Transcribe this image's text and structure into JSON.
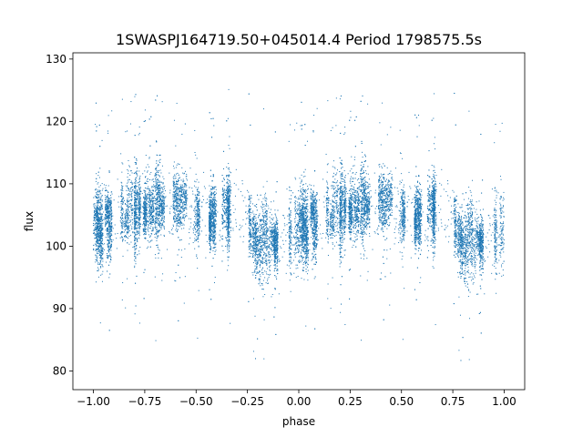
{
  "chart_data": {
    "type": "scatter",
    "title": "1SWASPJ164719.50+045014.4 Period 1798575.5s",
    "xlabel": "phase",
    "ylabel": "flux",
    "xlim": [
      -1.1,
      1.1
    ],
    "ylim": [
      77,
      131
    ],
    "xticks": [
      -1.0,
      -0.75,
      -0.5,
      -0.25,
      0.0,
      0.25,
      0.5,
      0.75,
      1.0
    ],
    "xtick_labels": [
      "−1.00",
      "−0.75",
      "−0.50",
      "−0.25",
      "0.00",
      "0.25",
      "0.50",
      "0.75",
      "1.00"
    ],
    "yticks": [
      80,
      90,
      100,
      110,
      120,
      130
    ],
    "ytick_labels": [
      "80",
      "90",
      "100",
      "110",
      "120",
      "130"
    ],
    "grid": false,
    "marker_color": "#1f77b4",
    "series": [
      {
        "phase_range": [
          -1.0,
          1.0
        ],
        "baseline_flux": 104,
        "flux_range": [
          80,
          130
        ],
        "period_repeat": 1.0,
        "profile": [
          {
            "phase": 0.0,
            "flux": 103
          },
          {
            "phase": 0.15,
            "flux": 105
          },
          {
            "phase": 0.3,
            "flux": 107
          },
          {
            "phase": 0.45,
            "flux": 106
          },
          {
            "phase": 0.6,
            "flux": 104
          },
          {
            "phase": 0.7,
            "flux": 106
          },
          {
            "phase": 0.8,
            "flux": 102
          },
          {
            "phase": 0.9,
            "flux": 102
          },
          {
            "phase": 1.0,
            "flux": 103
          }
        ]
      }
    ]
  }
}
